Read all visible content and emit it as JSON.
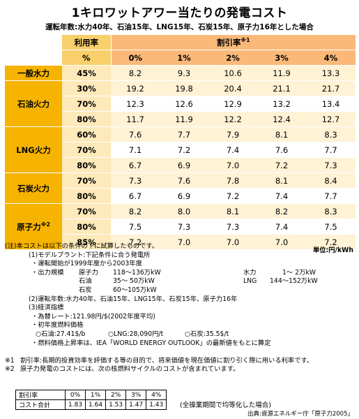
{
  "title": "1キロワットアワー当たりの発電コスト",
  "subtitle": "運転年数:水力40年、石油15年、LNG15年、石炭15年、原子力16年とした場合",
  "table": {
    "header_rate": "利用率",
    "header_rate_unit": "%",
    "header_discount": "割引率",
    "header_discount_note": "※1",
    "discount_rates": [
      "0%",
      "1%",
      "2%",
      "3%",
      "4%"
    ],
    "groups": [
      {
        "name": "一般水力",
        "note": "",
        "rows": [
          {
            "rate": "45%",
            "values": [
              "8.2",
              "9.3",
              "10.6",
              "11.9",
              "13.3"
            ]
          }
        ]
      },
      {
        "name": "石油火力",
        "note": "",
        "rows": [
          {
            "rate": "30%",
            "values": [
              "19.2",
              "19.8",
              "20.4",
              "21.1",
              "21.7"
            ]
          },
          {
            "rate": "70%",
            "values": [
              "12.3",
              "12.6",
              "12.9",
              "13.2",
              "13.4"
            ]
          },
          {
            "rate": "80%",
            "values": [
              "11.7",
              "11.9",
              "12.2",
              "12.4",
              "12.7"
            ]
          }
        ]
      },
      {
        "name": "LNG火力",
        "note": "",
        "rows": [
          {
            "rate": "60%",
            "values": [
              "7.6",
              "7.7",
              "7.9",
              "8.1",
              "8.3"
            ]
          },
          {
            "rate": "70%",
            "values": [
              "7.1",
              "7.2",
              "7.4",
              "7.6",
              "7.7"
            ]
          },
          {
            "rate": "80%",
            "values": [
              "6.7",
              "6.9",
              "7.0",
              "7.2",
              "7.3"
            ]
          }
        ]
      },
      {
        "name": "石炭火力",
        "note": "",
        "rows": [
          {
            "rate": "70%",
            "values": [
              "7.3",
              "7.6",
              "7.8",
              "8.1",
              "8.4"
            ]
          },
          {
            "rate": "80%",
            "values": [
              "6.7",
              "6.9",
              "7.2",
              "7.4",
              "7.7"
            ]
          }
        ]
      },
      {
        "name": "原子力",
        "note": "※2",
        "rows": [
          {
            "rate": "70%",
            "values": [
              "8.2",
              "8.0",
              "8.1",
              "8.2",
              "8.3"
            ]
          },
          {
            "rate": "80%",
            "values": [
              "7.5",
              "7.3",
              "7.3",
              "7.4",
              "7.5"
            ]
          },
          {
            "rate": "85%",
            "values": [
              "7.2",
              "7.0",
              "7.0",
              "7.0",
              "7.2"
            ]
          }
        ]
      }
    ]
  },
  "unit": "単位:円/kWh",
  "notes": {
    "intro": "(注)本コストは以下の条件の下に試算したものです。",
    "model_plant": "(1)モデルプラント:下記条件に合う発電所",
    "operation_start": "・運転開始が1999年度から2003年度",
    "output_label": "・出力規模",
    "outputs": [
      {
        "name": "原子力",
        "range": "118〜136万kW"
      },
      {
        "name": "石油",
        "range": "35〜 50万kW"
      },
      {
        "name": "石炭",
        "range": "60〜105万kW"
      }
    ],
    "outputs_right": [
      {
        "name": "水力",
        "range": "1〜 2万kW"
      },
      {
        "name": "LNG",
        "range": "144〜152万kW"
      }
    ],
    "years": "(2)運転年数:水力40年、石油15年、LNG15年、石炭15年、原子力16年",
    "econ": "(3)経済指標",
    "fx": "・為替レート:121.98円/$(2002年度平均)",
    "fuel_label": "・初年度燃料価格",
    "fuel_oil": "○石油:27.41$/b",
    "fuel_lng": "○LNG:28,090円/t",
    "fuel_coal": "○石炭:35.5$/t",
    "fuel_rise": "・燃料価格上昇率は、IEA「WORLD ENERGY OUTLOOK」の最新値をもとに算定",
    "note1_mark": "※1",
    "note1": "割引率:長期的投資効率を評価する等の目的で、将来価値を現在価値に割り引く際に用いる利率です。",
    "note2_mark": "※2",
    "note2": "原子力発電のコストには、次の核燃料サイクルのコストが含まれています。"
  },
  "cycle_table": {
    "row1_label": "割引率",
    "row1": [
      "0%",
      "1%",
      "2%",
      "3%",
      "4%"
    ],
    "row2_label": "コスト合計",
    "row2": [
      "1.83",
      "1.64",
      "1.53",
      "1.47",
      "1.43"
    ]
  },
  "cycle_note": "(全操業期間で均等化した場合)",
  "source": "出典:資源エネルギー庁「原子力2005」"
}
